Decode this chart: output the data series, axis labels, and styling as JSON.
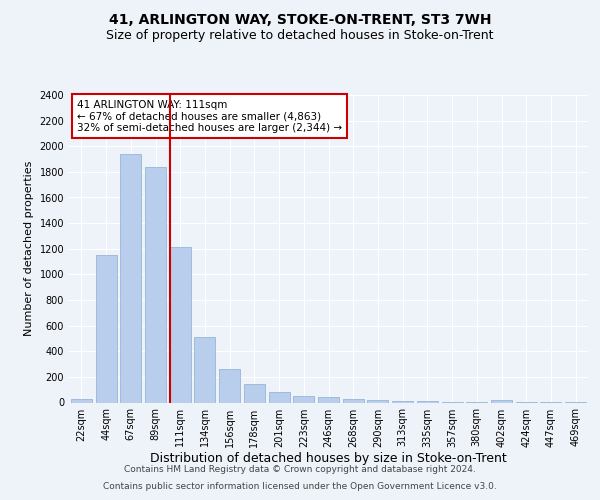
{
  "title": "41, ARLINGTON WAY, STOKE-ON-TRENT, ST3 7WH",
  "subtitle": "Size of property relative to detached houses in Stoke-on-Trent",
  "xlabel": "Distribution of detached houses by size in Stoke-on-Trent",
  "ylabel": "Number of detached properties",
  "categories": [
    "22sqm",
    "44sqm",
    "67sqm",
    "89sqm",
    "111sqm",
    "134sqm",
    "156sqm",
    "178sqm",
    "201sqm",
    "223sqm",
    "246sqm",
    "268sqm",
    "290sqm",
    "313sqm",
    "335sqm",
    "357sqm",
    "380sqm",
    "402sqm",
    "424sqm",
    "447sqm",
    "469sqm"
  ],
  "values": [
    30,
    1150,
    1940,
    1840,
    1210,
    510,
    265,
    145,
    80,
    50,
    42,
    30,
    18,
    12,
    8,
    5,
    5,
    18,
    5,
    5,
    5
  ],
  "bar_color": "#b8ceec",
  "bar_edgecolor": "#8aaed4",
  "redline_index": 4,
  "annotation_line1": "41 ARLINGTON WAY: 111sqm",
  "annotation_line2": "← 67% of detached houses are smaller (4,863)",
  "annotation_line3": "32% of semi-detached houses are larger (2,344) →",
  "annotation_box_facecolor": "#ffffff",
  "annotation_box_edgecolor": "#cc0000",
  "footer1": "Contains HM Land Registry data © Crown copyright and database right 2024.",
  "footer2": "Contains public sector information licensed under the Open Government Licence v3.0.",
  "ylim": [
    0,
    2400
  ],
  "yticks": [
    0,
    200,
    400,
    600,
    800,
    1000,
    1200,
    1400,
    1600,
    1800,
    2000,
    2200,
    2400
  ],
  "background_color": "#eef2f9",
  "grid_color": "#ffffff",
  "title_fontsize": 10,
  "subtitle_fontsize": 9,
  "ylabel_fontsize": 8,
  "xlabel_fontsize": 9,
  "tick_fontsize": 7,
  "annot_fontsize": 7.5,
  "footer_fontsize": 6.5
}
